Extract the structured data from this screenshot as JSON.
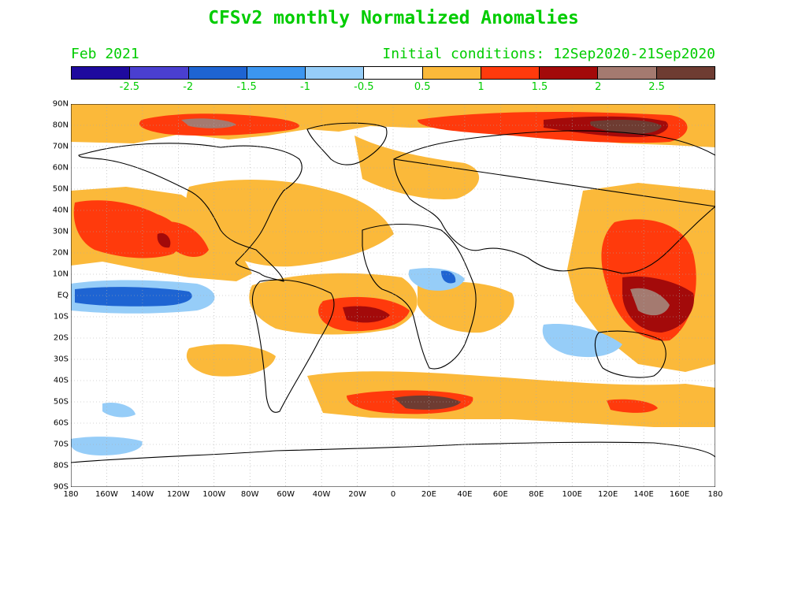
{
  "title": "CFSv2 monthly Normalized Anomalies",
  "month": "Feb 2021",
  "initial_conditions": "Initial conditions: 12Sep2020-21Sep2020",
  "colors": {
    "text": "#00cc00",
    "coast": "#000000",
    "grid": "#999999"
  },
  "colorbar": {
    "colors": [
      "#1e0a9e",
      "#4a3fd0",
      "#1e64d2",
      "#3c96f0",
      "#96cdf8",
      "#ffffff",
      "#fbb93a",
      "#ff3a0c",
      "#a30a0a",
      "#a47a70",
      "#6e3c32"
    ],
    "labels": [
      "-2.5",
      "-2",
      "-1.5",
      "-1",
      "-0.5",
      "0.5",
      "1",
      "1.5",
      "2",
      "2.5"
    ]
  },
  "axes": {
    "lat_labels": [
      "90N",
      "80N",
      "70N",
      "60N",
      "50N",
      "40N",
      "30N",
      "20N",
      "10N",
      "EQ",
      "10S",
      "20S",
      "30S",
      "40S",
      "50S",
      "60S",
      "70S",
      "80S",
      "90S"
    ],
    "lon_labels": [
      "180",
      "160W",
      "140W",
      "120W",
      "100W",
      "80W",
      "60W",
      "40W",
      "20W",
      "0",
      "20E",
      "40E",
      "60E",
      "80E",
      "100E",
      "120E",
      "140E",
      "160E",
      "180"
    ]
  }
}
